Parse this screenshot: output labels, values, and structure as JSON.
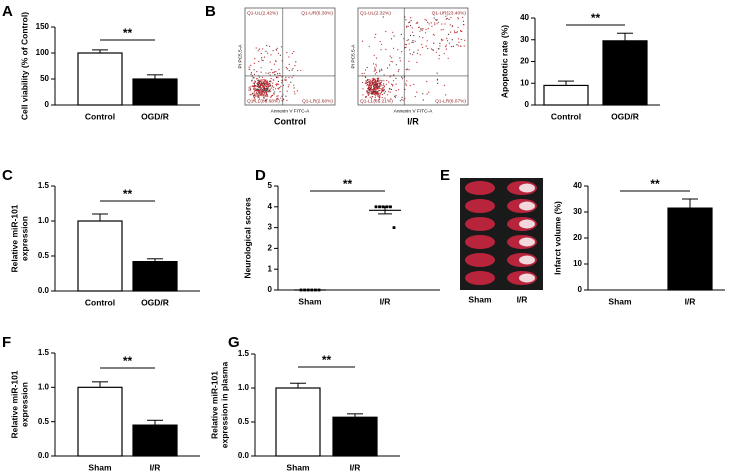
{
  "chart_data": [
    {
      "panel": "A",
      "type": "bar",
      "ylabel": [
        "Cell viability (% of Control)"
      ],
      "categories": [
        "Control",
        "OGD/R"
      ],
      "values": [
        100,
        50
      ],
      "errors": [
        6,
        8
      ],
      "colors": [
        "#ffffff",
        "#000000"
      ],
      "ylim": [
        0,
        150
      ],
      "yticks": [
        0,
        50,
        100,
        150
      ],
      "annotation": "**"
    },
    {
      "panel": "B",
      "type": "flow",
      "x_label": "Annexin V FITC-A",
      "y_label": "PI PC5.5-A",
      "plots": [
        {
          "name": "Control",
          "quadrants": [
            "Q1-UL(2.42%)",
            "Q1-UR(6.30%)",
            "Q1-LL(88.68%)",
            "Q1-LR(2.60%)"
          ]
        },
        {
          "name": "I/R",
          "quadrants": [
            "Q1-UL(2.32%)",
            "Q1-UR(23.40%)",
            "Q1-LL(66.21%)",
            "Q1-LR(8.07%)"
          ]
        }
      ]
    },
    {
      "type": "bar",
      "ylabel": [
        "Apoptotic rate (%)"
      ],
      "categories": [
        "Control",
        "OGD/R"
      ],
      "values": [
        9,
        29.5
      ],
      "errors": [
        2,
        3.5
      ],
      "colors": [
        "#ffffff",
        "#000000"
      ],
      "ylim": [
        0,
        40
      ],
      "yticks": [
        0,
        10,
        20,
        30,
        40
      ],
      "annotation": "**"
    },
    {
      "panel": "C",
      "type": "bar",
      "ylabel": [
        "Relative miR-101",
        "expression"
      ],
      "categories": [
        "Control",
        "OGD/R"
      ],
      "values": [
        1.0,
        0.42
      ],
      "errors": [
        0.1,
        0.04
      ],
      "colors": [
        "#ffffff",
        "#000000"
      ],
      "ylim": [
        0,
        1.5
      ],
      "yticks": [
        {
          "value": 0,
          "label": "0.0"
        },
        0.5,
        {
          "value": 1,
          "label": "1.0"
        },
        1.5
      ],
      "annotation": "**"
    },
    {
      "panel": "D",
      "type": "scatter",
      "ylabel": [
        "Neurological scores"
      ],
      "categories": [
        "Sham",
        "I/R"
      ],
      "points": [
        [
          0,
          0,
          0,
          0,
          0,
          0
        ],
        [
          4,
          4,
          4,
          4,
          4,
          3
        ]
      ],
      "means": [
        0,
        3.83
      ],
      "errors": [
        0,
        0.17
      ],
      "ylim": [
        0,
        5
      ],
      "yticks": [
        0,
        1,
        2,
        3,
        4,
        5
      ],
      "annotation": "**"
    },
    {
      "panel": "E",
      "type": "image",
      "labels": [
        "Sham",
        "I/R"
      ]
    },
    {
      "type": "bar",
      "ylabel": [
        "Infarct volume (%)"
      ],
      "categories": [
        "Sham",
        "I/R"
      ],
      "values": [
        0,
        31.5
      ],
      "errors": [
        0,
        3.5
      ],
      "colors": [
        "#ffffff",
        "#000000"
      ],
      "ylim": [
        0,
        40
      ],
      "yticks": [
        0,
        10,
        20,
        30,
        40
      ],
      "annotation": "**"
    },
    {
      "panel": "F",
      "type": "bar",
      "ylabel": [
        "Relative miR-101",
        "expression"
      ],
      "categories": [
        "Sham",
        "I/R"
      ],
      "values": [
        1.0,
        0.45
      ],
      "errors": [
        0.08,
        0.07
      ],
      "colors": [
        "#ffffff",
        "#000000"
      ],
      "ylim": [
        0,
        1.5
      ],
      "yticks": [
        {
          "value": 0,
          "label": "0.0"
        },
        0.5,
        {
          "value": 1,
          "label": "1.0"
        },
        1.5
      ],
      "annotation": "**"
    },
    {
      "panel": "G",
      "type": "bar",
      "ylabel": [
        "Relative miR-101",
        "expression in plasma"
      ],
      "categories": [
        "Sham",
        "I/R"
      ],
      "values": [
        1.0,
        0.57
      ],
      "errors": [
        0.07,
        0.05
      ],
      "colors": [
        "#ffffff",
        "#000000"
      ],
      "ylim": [
        0,
        1.5
      ],
      "yticks": [
        {
          "value": 0,
          "label": "0.0"
        },
        0.5,
        {
          "value": 1,
          "label": "1.0"
        },
        1.5
      ],
      "annotation": "**"
    }
  ]
}
